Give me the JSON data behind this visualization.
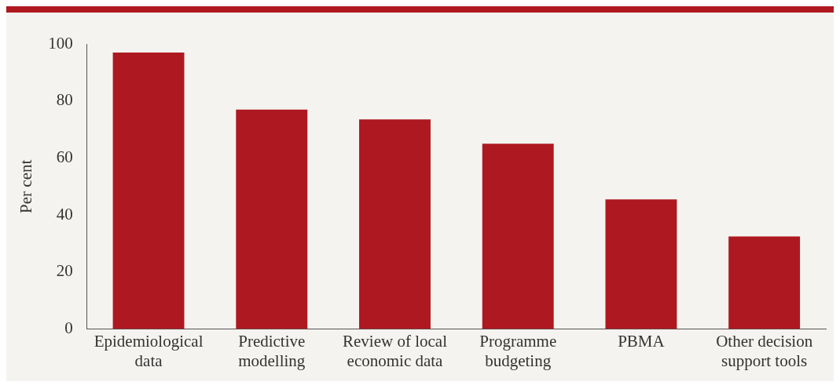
{
  "chart_data": {
    "type": "bar",
    "ylabel": "Per cent",
    "categories": [
      "Epidemiological data",
      "Predictive modelling",
      "Review of local economic data",
      "Programme budgeting",
      "PBMA",
      "Other decision support tools"
    ],
    "values": [
      97,
      77,
      73.5,
      65,
      45.5,
      32.5
    ],
    "color": "#ae1820",
    "ylim": [
      0,
      100
    ],
    "yticks": [
      0,
      20,
      40,
      60,
      80,
      100
    ],
    "grid": false,
    "legend": false
  }
}
